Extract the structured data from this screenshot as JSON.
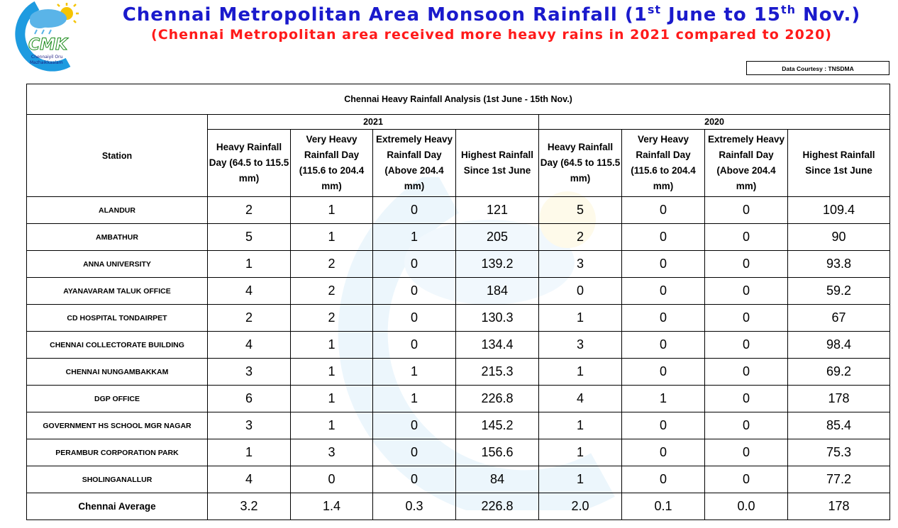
{
  "header": {
    "title_part1": "Chennai Metropolitan Area Monsoon Rainfall (1",
    "title_sup1": "st",
    "title_part2": " June to 15",
    "title_sup2": "th",
    "title_part3": " Nov.)",
    "subtitle": "(Chennai Metropolitan area received more heavy rains in 2021 compared to 2020)",
    "courtesy": "Data Courtesy : TNSDMA"
  },
  "logo": {
    "text": "CMK",
    "tagline_line1": "Chennaiyil Oru",
    "tagline_line2": "Mazhaikkaalam",
    "colors": {
      "ring": "#1e9be0",
      "sun": "#f5c400",
      "cloud": "#5ab4e8"
    }
  },
  "table": {
    "caption": "Chennai Heavy Rainfall Analysis (1st June - 15th Nov.)",
    "station_header": "Station",
    "year_2021": "2021",
    "year_2020": "2020",
    "columns": [
      {
        "line1": "Heavy Rainfall",
        "line2": "Day (64.5 to 115.5",
        "line3": "mm)"
      },
      {
        "line1": "Very Heavy",
        "line2": "Rainfall Day",
        "line3": "(115.6 to 204.4",
        "line4": "mm)"
      },
      {
        "line1": "Extremely Heavy",
        "line2": "Rainfall Day",
        "line3": "(Above 204.4 mm)"
      },
      {
        "line1": "Highest Rainfall",
        "line2": "Since 1st June"
      }
    ],
    "rows": [
      {
        "station": "ALANDUR",
        "v": [
          "2",
          "1",
          "0",
          "121",
          "5",
          "0",
          "0",
          "109.4"
        ]
      },
      {
        "station": "AMBATHUR",
        "v": [
          "5",
          "1",
          "1",
          "205",
          "2",
          "0",
          "0",
          "90"
        ]
      },
      {
        "station": "ANNA UNIVERSITY",
        "v": [
          "1",
          "2",
          "0",
          "139.2",
          "3",
          "0",
          "0",
          "93.8"
        ]
      },
      {
        "station": "AYANAVARAM TALUK OFFICE",
        "v": [
          "4",
          "2",
          "0",
          "184",
          "0",
          "0",
          "0",
          "59.2"
        ]
      },
      {
        "station": "CD HOSPITAL TONDAIRPET",
        "v": [
          "2",
          "2",
          "0",
          "130.3",
          "1",
          "0",
          "0",
          "67"
        ]
      },
      {
        "station": "CHENNAI COLLECTORATE BUILDING",
        "v": [
          "4",
          "1",
          "0",
          "134.4",
          "3",
          "0",
          "0",
          "98.4"
        ]
      },
      {
        "station": "CHENNAI NUNGAMBAKKAM",
        "v": [
          "3",
          "1",
          "1",
          "215.3",
          "1",
          "0",
          "0",
          "69.2"
        ]
      },
      {
        "station": "DGP OFFICE",
        "v": [
          "6",
          "1",
          "1",
          "226.8",
          "4",
          "1",
          "0",
          "178"
        ]
      },
      {
        "station": "GOVERNMENT HS SCHOOL MGR NAGAR",
        "v": [
          "3",
          "1",
          "0",
          "145.2",
          "1",
          "0",
          "0",
          "85.4"
        ]
      },
      {
        "station": "PERAMBUR CORPORATION PARK",
        "v": [
          "1",
          "3",
          "0",
          "156.6",
          "1",
          "0",
          "0",
          "75.3"
        ]
      },
      {
        "station": "SHOLINGANALLUR",
        "v": [
          "4",
          "0",
          "0",
          "84",
          "1",
          "0",
          "0",
          "77.2"
        ]
      }
    ],
    "average": {
      "station": "Chennai Average",
      "v": [
        "3.2",
        "1.4",
        "0.3",
        "226.8",
        "2.0",
        "0.1",
        "0.0",
        "178"
      ]
    }
  }
}
